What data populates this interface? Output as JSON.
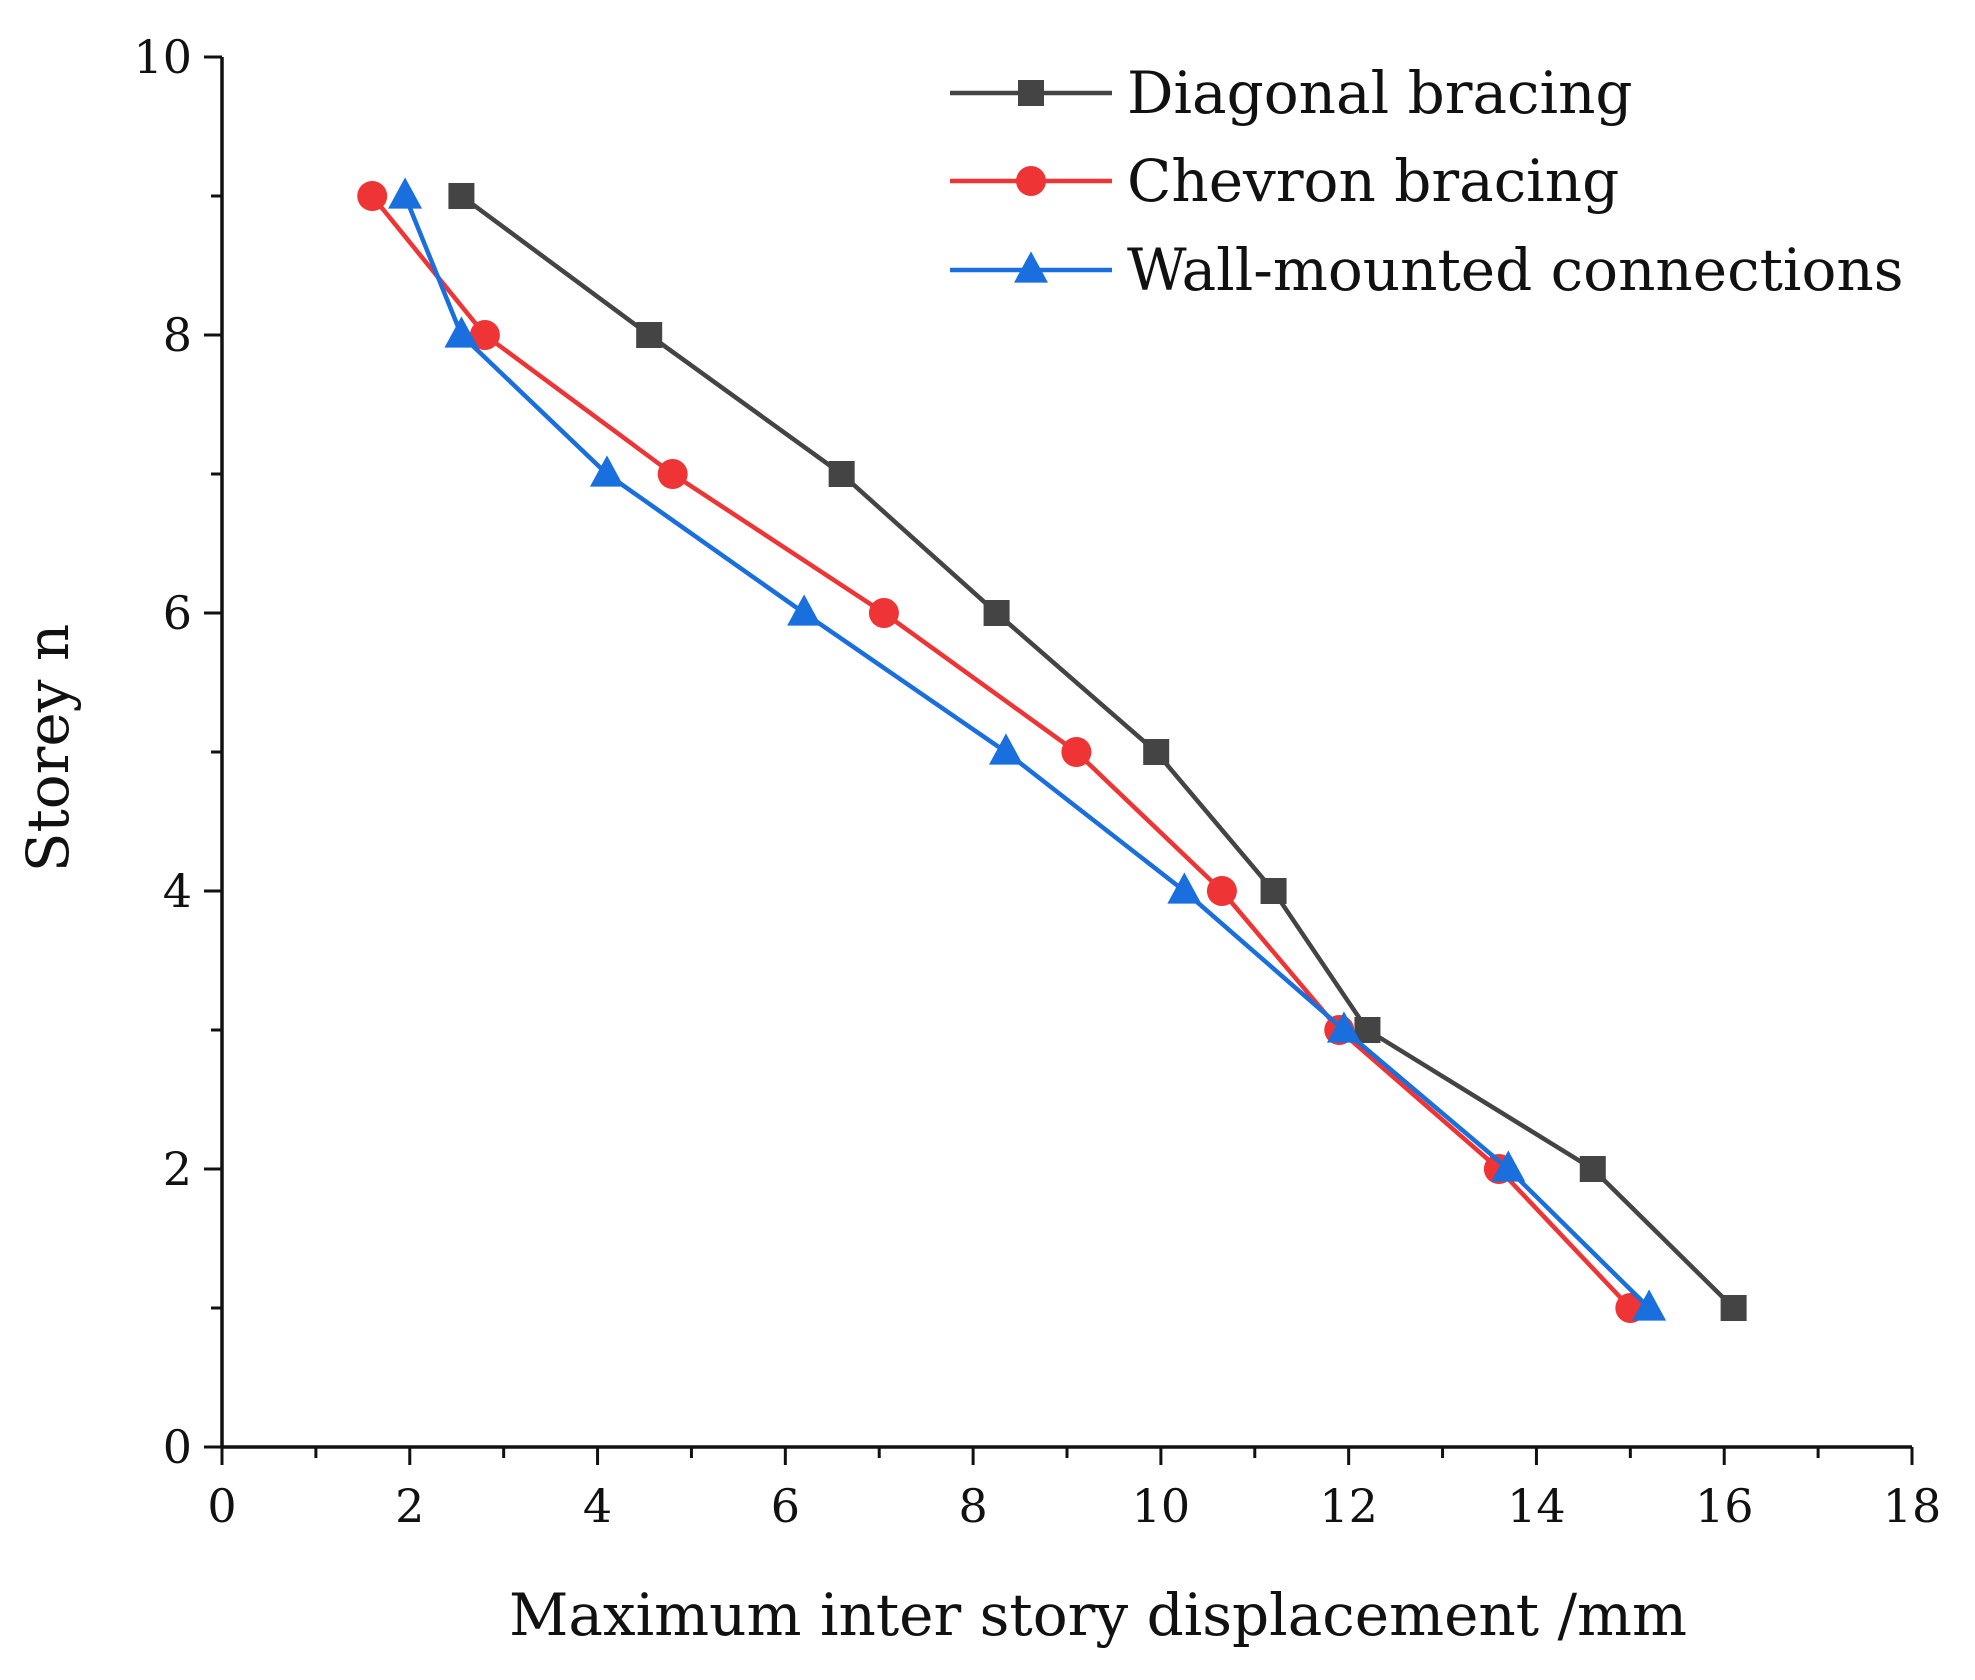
{
  "chart_data": {
    "type": "line",
    "title": "",
    "xlabel": "Maximum inter story displacement /mm",
    "ylabel": "Storey n",
    "xlim": [
      0,
      18
    ],
    "ylim": [
      0,
      10
    ],
    "xticks": [
      0,
      2,
      4,
      6,
      8,
      10,
      12,
      14,
      16,
      18
    ],
    "yticks": [
      0,
      2,
      4,
      6,
      8,
      10
    ],
    "xtick_labels": [
      "0",
      "2",
      "4",
      "6",
      "8",
      "10",
      "12",
      "14",
      "16",
      "18"
    ],
    "ytick_labels": [
      "0",
      "2",
      "4",
      "6",
      "8",
      "10"
    ],
    "grid": false,
    "legend_position": "top-right",
    "series": [
      {
        "name": "Diagonal bracing",
        "color": "#444444",
        "marker": "square",
        "x": [
          16.1,
          14.6,
          12.2,
          11.2,
          9.95,
          8.25,
          6.6,
          4.55,
          2.55
        ],
        "y": [
          1,
          2,
          3,
          4,
          5,
          6,
          7,
          8,
          9
        ]
      },
      {
        "name": "Chevron bracing",
        "color": "#ee3434",
        "marker": "circle",
        "x": [
          15.0,
          13.6,
          11.9,
          10.65,
          9.1,
          7.05,
          4.8,
          2.8,
          1.6
        ],
        "y": [
          1,
          2,
          3,
          4,
          5,
          6,
          7,
          8,
          9
        ]
      },
      {
        "name": "Wall-mounted connections",
        "color": "#1a6fdf",
        "marker": "triangle",
        "x": [
          15.2,
          13.7,
          11.95,
          10.25,
          8.35,
          6.2,
          4.1,
          2.55,
          1.95
        ],
        "y": [
          1,
          2,
          3,
          4,
          5,
          6,
          7,
          8,
          9
        ]
      }
    ]
  }
}
